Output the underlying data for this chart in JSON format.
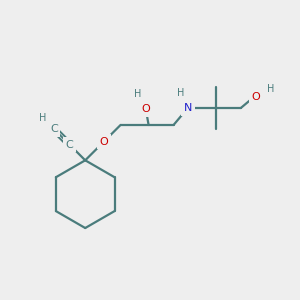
{
  "bg_color": "#eeeeee",
  "atom_color_C": "#4a7c7c",
  "atom_color_O": "#cc0000",
  "atom_color_N": "#2020cc",
  "atom_color_H": "#4a7c7c",
  "bond_color": "#4a7c7c",
  "figsize": [
    3.0,
    3.0
  ],
  "dpi": 100,
  "xlim": [
    0,
    10
  ],
  "ylim": [
    0,
    10
  ]
}
